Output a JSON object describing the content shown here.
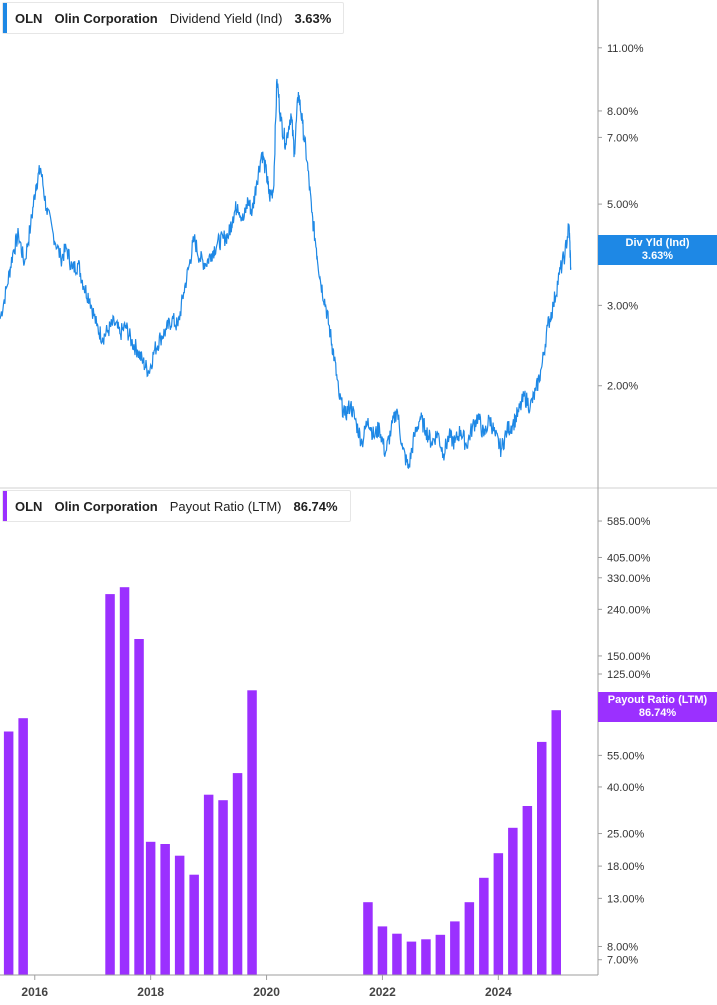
{
  "colors": {
    "yield": "#1e88e5",
    "payout": "#9b30ff",
    "axis": "#9e9e9e",
    "grid": "#d0d0d0"
  },
  "top_legend": {
    "ticker": "OLN",
    "company": "Olin Corporation",
    "metric": "Dividend Yield (Ind)",
    "value": "3.63%"
  },
  "bottom_legend": {
    "ticker": "OLN",
    "company": "Olin Corporation",
    "metric": "Payout Ratio (LTM)",
    "value": "86.74%"
  },
  "top_tag": {
    "label": "Div Yld (Ind)",
    "value": "3.63%"
  },
  "bottom_tag": {
    "label": "Payout Ratio (LTM)",
    "value": "86.74%"
  },
  "chart_data": [
    {
      "type": "line",
      "scale": "log",
      "title": "",
      "series": [
        {
          "name": "Dividend Yield (Ind)"
        }
      ],
      "y_ticks": [
        {
          "label": "11.00%",
          "value": 11.0
        },
        {
          "label": "8.00%",
          "value": 8.0
        },
        {
          "label": "7.00%",
          "value": 7.0
        },
        {
          "label": "5.00%",
          "value": 5.0
        },
        {
          "label": "3.00%",
          "value": 3.0
        },
        {
          "label": "2.00%",
          "value": 2.0
        }
      ],
      "ylim": [
        1.2,
        14.0
      ],
      "xlim": [
        2015.4,
        2025.72
      ],
      "points": [
        [
          2015.4,
          2.8
        ],
        [
          2015.52,
          3.3
        ],
        [
          2015.62,
          3.9
        ],
        [
          2015.72,
          4.3
        ],
        [
          2015.82,
          3.7
        ],
        [
          2015.93,
          4.5
        ],
        [
          2016.02,
          5.5
        ],
        [
          2016.1,
          6.0
        ],
        [
          2016.2,
          4.9
        ],
        [
          2016.32,
          4.3
        ],
        [
          2016.45,
          3.8
        ],
        [
          2016.55,
          4.0
        ],
        [
          2016.65,
          3.6
        ],
        [
          2016.75,
          3.7
        ],
        [
          2016.85,
          3.3
        ],
        [
          2016.95,
          3.1
        ],
        [
          2017.07,
          2.7
        ],
        [
          2017.17,
          2.55
        ],
        [
          2017.27,
          2.65
        ],
        [
          2017.37,
          2.75
        ],
        [
          2017.47,
          2.6
        ],
        [
          2017.57,
          2.7
        ],
        [
          2017.67,
          2.5
        ],
        [
          2017.77,
          2.4
        ],
        [
          2017.87,
          2.25
        ],
        [
          2017.97,
          2.15
        ],
        [
          2018.07,
          2.4
        ],
        [
          2018.17,
          2.55
        ],
        [
          2018.27,
          2.65
        ],
        [
          2018.37,
          2.8
        ],
        [
          2018.47,
          2.7
        ],
        [
          2018.57,
          3.2
        ],
        [
          2018.67,
          3.7
        ],
        [
          2018.75,
          4.2
        ],
        [
          2018.85,
          3.8
        ],
        [
          2018.95,
          3.7
        ],
        [
          2019.05,
          3.9
        ],
        [
          2019.15,
          4.1
        ],
        [
          2019.25,
          4.2
        ],
        [
          2019.35,
          4.3
        ],
        [
          2019.42,
          4.7
        ],
        [
          2019.5,
          5.0
        ],
        [
          2019.6,
          4.6
        ],
        [
          2019.68,
          5.1
        ],
        [
          2019.75,
          4.8
        ],
        [
          2019.83,
          5.6
        ],
        [
          2019.92,
          6.5
        ],
        [
          2020.0,
          5.8
        ],
        [
          2020.05,
          5.2
        ],
        [
          2020.12,
          5.4
        ],
        [
          2020.18,
          9.4
        ],
        [
          2020.25,
          7.6
        ],
        [
          2020.33,
          6.8
        ],
        [
          2020.42,
          7.9
        ],
        [
          2020.48,
          6.5
        ],
        [
          2020.55,
          8.8
        ],
        [
          2020.62,
          7.5
        ],
        [
          2020.7,
          6.2
        ],
        [
          2020.78,
          4.8
        ],
        [
          2020.86,
          4.0
        ],
        [
          2020.93,
          3.4
        ],
        [
          2021.02,
          3.0
        ],
        [
          2021.1,
          2.6
        ],
        [
          2021.17,
          2.3
        ],
        [
          2021.25,
          1.9
        ],
        [
          2021.35,
          1.72
        ],
        [
          2021.45,
          1.82
        ],
        [
          2021.55,
          1.65
        ],
        [
          2021.65,
          1.5
        ],
        [
          2021.75,
          1.7
        ],
        [
          2021.85,
          1.55
        ],
        [
          2021.95,
          1.62
        ],
        [
          2022.05,
          1.42
        ],
        [
          2022.15,
          1.6
        ],
        [
          2022.25,
          1.78
        ],
        [
          2022.35,
          1.45
        ],
        [
          2022.45,
          1.32
        ],
        [
          2022.55,
          1.55
        ],
        [
          2022.65,
          1.7
        ],
        [
          2022.75,
          1.6
        ],
        [
          2022.85,
          1.5
        ],
        [
          2022.95,
          1.58
        ],
        [
          2023.05,
          1.42
        ],
        [
          2023.15,
          1.55
        ],
        [
          2023.25,
          1.5
        ],
        [
          2023.35,
          1.6
        ],
        [
          2023.45,
          1.48
        ],
        [
          2023.55,
          1.62
        ],
        [
          2023.65,
          1.72
        ],
        [
          2023.75,
          1.55
        ],
        [
          2023.85,
          1.7
        ],
        [
          2023.95,
          1.55
        ],
        [
          2024.05,
          1.45
        ],
        [
          2024.15,
          1.6
        ],
        [
          2024.25,
          1.65
        ],
        [
          2024.35,
          1.75
        ],
        [
          2024.45,
          1.9
        ],
        [
          2024.55,
          1.8
        ],
        [
          2024.65,
          1.95
        ],
        [
          2024.75,
          2.2
        ],
        [
          2024.85,
          2.7
        ],
        [
          2024.95,
          3.0
        ],
        [
          2025.05,
          3.5
        ],
        [
          2025.15,
          3.9
        ],
        [
          2025.22,
          4.5
        ],
        [
          2025.25,
          3.63
        ]
      ]
    },
    {
      "type": "bar",
      "scale": "log",
      "title": "",
      "series": [
        {
          "name": "Payout Ratio (LTM)"
        }
      ],
      "x_ticks": [
        "2016",
        "2018",
        "2020",
        "2022",
        "2024"
      ],
      "x_tick_values": [
        2016,
        2018,
        2020,
        2022,
        2024
      ],
      "y_ticks": [
        {
          "label": "585.00%",
          "value": 585
        },
        {
          "label": "405.00%",
          "value": 405
        },
        {
          "label": "330.00%",
          "value": 330
        },
        {
          "label": "240.00%",
          "value": 240
        },
        {
          "label": "150.00%",
          "value": 150
        },
        {
          "label": "125.00%",
          "value": 125
        },
        {
          "label": "55.00%",
          "value": 55
        },
        {
          "label": "40.00%",
          "value": 40
        },
        {
          "label": "25.00%",
          "value": 25
        },
        {
          "label": "18.00%",
          "value": 18
        },
        {
          "label": "13.00%",
          "value": 13
        },
        {
          "label": "8.00%",
          "value": 8
        },
        {
          "label": "7.00%",
          "value": 7
        }
      ],
      "ylim": [
        6.0,
        800
      ],
      "xlim": [
        2015.4,
        2025.72
      ],
      "bars": [
        {
          "x": 2015.55,
          "value": 70
        },
        {
          "x": 2015.8,
          "value": 80
        },
        {
          "x": 2017.3,
          "value": 280
        },
        {
          "x": 2017.55,
          "value": 300
        },
        {
          "x": 2017.8,
          "value": 178
        },
        {
          "x": 2018.0,
          "value": 23
        },
        {
          "x": 2018.25,
          "value": 22.5
        },
        {
          "x": 2018.5,
          "value": 20
        },
        {
          "x": 2018.75,
          "value": 16.5
        },
        {
          "x": 2019.0,
          "value": 37
        },
        {
          "x": 2019.25,
          "value": 35
        },
        {
          "x": 2019.5,
          "value": 46
        },
        {
          "x": 2019.75,
          "value": 106
        },
        {
          "x": 2021.75,
          "value": 12.5
        },
        {
          "x": 2022.0,
          "value": 9.8
        },
        {
          "x": 2022.25,
          "value": 9.1
        },
        {
          "x": 2022.5,
          "value": 8.4
        },
        {
          "x": 2022.75,
          "value": 8.6
        },
        {
          "x": 2023.0,
          "value": 9.0
        },
        {
          "x": 2023.25,
          "value": 10.3
        },
        {
          "x": 2023.5,
          "value": 12.5
        },
        {
          "x": 2023.75,
          "value": 16.0
        },
        {
          "x": 2024.0,
          "value": 20.5
        },
        {
          "x": 2024.25,
          "value": 26.5
        },
        {
          "x": 2024.5,
          "value": 33.0
        },
        {
          "x": 2024.75,
          "value": 63.0
        },
        {
          "x": 2025.0,
          "value": 86.74
        }
      ]
    }
  ]
}
